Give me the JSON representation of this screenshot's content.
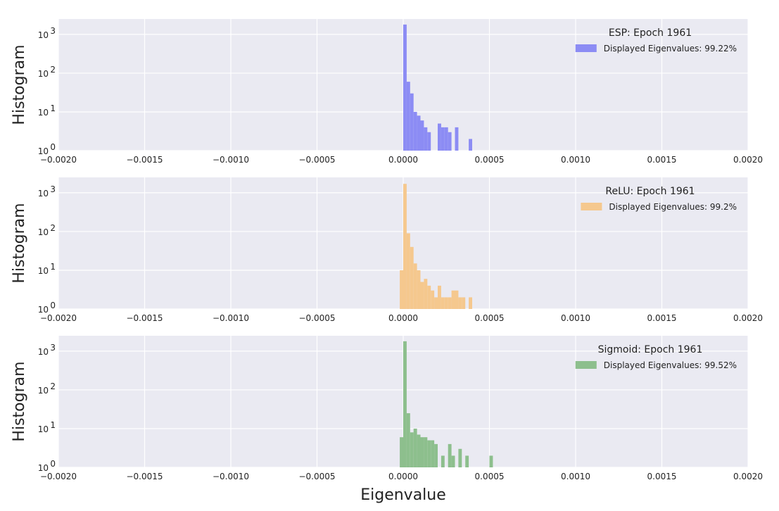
{
  "chart_data": [
    {
      "type": "bar",
      "ylabel": "Histogram",
      "yscale": "log",
      "xlim": [
        -0.002,
        0.002
      ],
      "ylim": [
        1,
        2500
      ],
      "x_ticks": [
        "−0.0020",
        "−0.0015",
        "−0.0010",
        "−0.0005",
        "0.0000",
        "0.0005",
        "0.0010",
        "0.0015",
        "0.0020"
      ],
      "y_ticks": [
        {
          "base": "10",
          "exp": "0"
        },
        {
          "base": "10",
          "exp": "1"
        },
        {
          "base": "10",
          "exp": "2"
        },
        {
          "base": "10",
          "exp": "3"
        }
      ],
      "grid": true,
      "legend_title": "ESP: Epoch 1961",
      "legend_label": "Displayed Eigenvalues: 99.22%",
      "legend_position": "top-right",
      "color": "#8c8cf4",
      "bin_width": 2e-05,
      "bins": [
        {
          "x": 0.0,
          "y": 1800
        },
        {
          "x": 2e-05,
          "y": 60
        },
        {
          "x": 4e-05,
          "y": 30
        },
        {
          "x": 6e-05,
          "y": 10
        },
        {
          "x": 8e-05,
          "y": 8
        },
        {
          "x": 0.0001,
          "y": 6
        },
        {
          "x": 0.00012,
          "y": 4
        },
        {
          "x": 0.00014,
          "y": 3
        },
        {
          "x": 0.0002,
          "y": 5
        },
        {
          "x": 0.00022,
          "y": 4
        },
        {
          "x": 0.00024,
          "y": 4
        },
        {
          "x": 0.00026,
          "y": 3
        },
        {
          "x": 0.0003,
          "y": 4
        },
        {
          "x": 0.00038,
          "y": 2
        }
      ]
    },
    {
      "type": "bar",
      "ylabel": "Histogram",
      "yscale": "log",
      "xlim": [
        -0.002,
        0.002
      ],
      "ylim": [
        1,
        2500
      ],
      "x_ticks": [
        "−0.0020",
        "−0.0015",
        "−0.0010",
        "−0.0005",
        "0.0000",
        "0.0005",
        "0.0010",
        "0.0015",
        "0.0020"
      ],
      "y_ticks": [
        {
          "base": "10",
          "exp": "0"
        },
        {
          "base": "10",
          "exp": "1"
        },
        {
          "base": "10",
          "exp": "2"
        },
        {
          "base": "10",
          "exp": "3"
        }
      ],
      "grid": true,
      "legend_title": "ReLU: Epoch 1961",
      "legend_label": "Displayed Eigenvalues: 99.2%",
      "legend_position": "top-right",
      "color": "#f5c88e",
      "bin_width": 2e-05,
      "bins": [
        {
          "x": -2e-05,
          "y": 10
        },
        {
          "x": 0.0,
          "y": 1700
        },
        {
          "x": 2e-05,
          "y": 90
        },
        {
          "x": 4e-05,
          "y": 40
        },
        {
          "x": 6e-05,
          "y": 15
        },
        {
          "x": 8e-05,
          "y": 10
        },
        {
          "x": 0.0001,
          "y": 5
        },
        {
          "x": 0.00012,
          "y": 6
        },
        {
          "x": 0.00014,
          "y": 4
        },
        {
          "x": 0.00016,
          "y": 3
        },
        {
          "x": 0.00018,
          "y": 2
        },
        {
          "x": 0.0002,
          "y": 4
        },
        {
          "x": 0.00022,
          "y": 2
        },
        {
          "x": 0.00024,
          "y": 2
        },
        {
          "x": 0.00026,
          "y": 2
        },
        {
          "x": 0.00028,
          "y": 3
        },
        {
          "x": 0.0003,
          "y": 3
        },
        {
          "x": 0.00032,
          "y": 2
        },
        {
          "x": 0.00034,
          "y": 2
        },
        {
          "x": 0.00038,
          "y": 2
        }
      ]
    },
    {
      "type": "bar",
      "ylabel": "Histogram",
      "xlabel": "Eigenvalue",
      "yscale": "log",
      "xlim": [
        -0.002,
        0.002
      ],
      "ylim": [
        1,
        2500
      ],
      "x_ticks": [
        "−0.0020",
        "−0.0015",
        "−0.0010",
        "−0.0005",
        "0.0000",
        "0.0005",
        "0.0010",
        "0.0015",
        "0.0020"
      ],
      "y_ticks": [
        {
          "base": "10",
          "exp": "0"
        },
        {
          "base": "10",
          "exp": "1"
        },
        {
          "base": "10",
          "exp": "2"
        },
        {
          "base": "10",
          "exp": "3"
        }
      ],
      "grid": true,
      "legend_title": "Sigmoid: Epoch 1961",
      "legend_label": "Displayed Eigenvalues: 99.52%",
      "legend_position": "top-right",
      "color": "#8dbf8d",
      "bin_width": 2e-05,
      "bins": [
        {
          "x": -2e-05,
          "y": 6
        },
        {
          "x": 0.0,
          "y": 1800
        },
        {
          "x": 2e-05,
          "y": 25
        },
        {
          "x": 4e-05,
          "y": 8
        },
        {
          "x": 6e-05,
          "y": 10
        },
        {
          "x": 8e-05,
          "y": 7
        },
        {
          "x": 0.0001,
          "y": 6
        },
        {
          "x": 0.00012,
          "y": 6
        },
        {
          "x": 0.00014,
          "y": 5
        },
        {
          "x": 0.00016,
          "y": 5
        },
        {
          "x": 0.00018,
          "y": 4
        },
        {
          "x": 0.00022,
          "y": 2
        },
        {
          "x": 0.00026,
          "y": 4
        },
        {
          "x": 0.00028,
          "y": 2
        },
        {
          "x": 0.00032,
          "y": 3
        },
        {
          "x": 0.00036,
          "y": 2
        },
        {
          "x": 0.0005,
          "y": 2
        }
      ]
    }
  ]
}
